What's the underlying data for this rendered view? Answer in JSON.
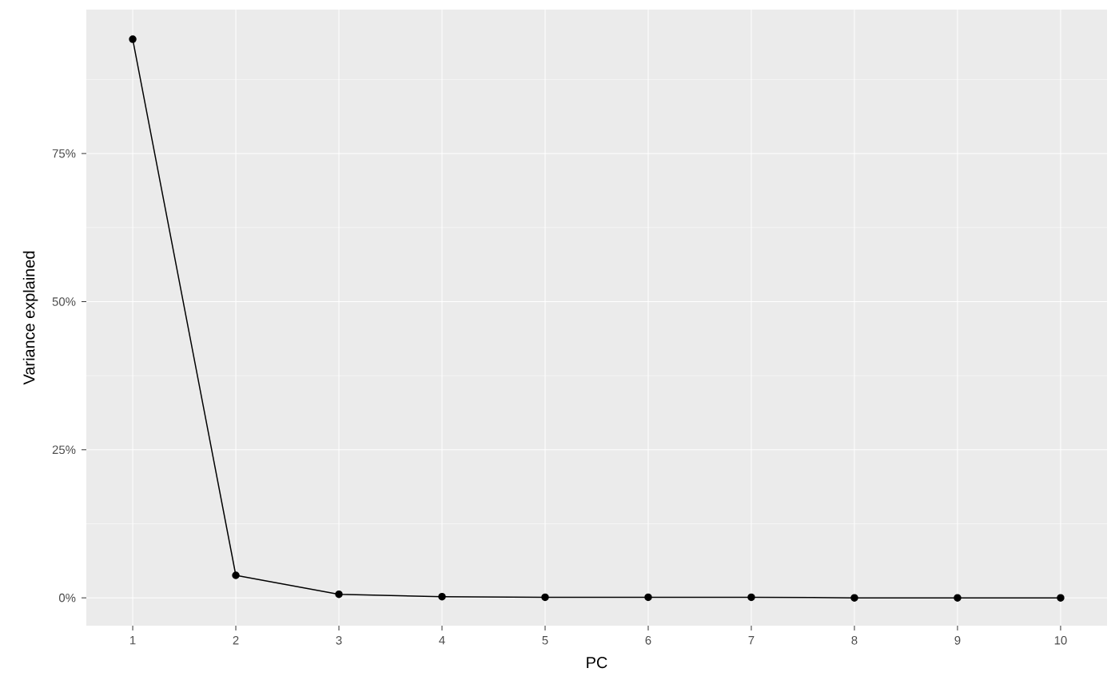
{
  "chart_data": {
    "type": "line",
    "xlabel": "PC",
    "ylabel": "Variance explained",
    "x": [
      1,
      2,
      3,
      4,
      5,
      6,
      7,
      8,
      9,
      10
    ],
    "series": [
      {
        "color": "#000000",
        "values": [
          94.3,
          3.8,
          0.6,
          0.2,
          0.1,
          0.1,
          0.1,
          0,
          0,
          0
        ]
      }
    ],
    "xlim": [
      0.55,
      10.45
    ],
    "ylim": [
      -4.7,
      99.3
    ],
    "xticks": [
      1,
      2,
      3,
      4,
      5,
      6,
      7,
      8,
      9,
      10
    ],
    "yticks": [
      {
        "value": 0,
        "label": "0%"
      },
      {
        "value": 25,
        "label": "25%"
      },
      {
        "value": 50,
        "label": "50%"
      },
      {
        "value": 75,
        "label": "75%"
      }
    ],
    "grid": true,
    "marker": "circle",
    "line_style": "solid"
  }
}
